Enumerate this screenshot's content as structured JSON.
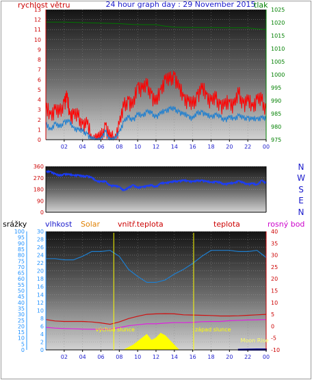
{
  "header": {
    "left_label": "rychlost větru",
    "title": "24 hour graph day : 29 November 2015",
    "right_label": "tlak"
  },
  "colors": {
    "wind": "#ff1a1a",
    "gust": "#ff0000",
    "wind_avg": "#1e7fd0",
    "pressure": "#007700",
    "direction": "#1a3cff",
    "humidity": "#1e7fd0",
    "temperature": "#d01010",
    "dewpoint": "#e020e0",
    "indoor_temp": "#ff6600",
    "solar": "#ffff00",
    "rain": "#000099",
    "rain_axis": "#1e90ff",
    "sun_event": "#ffff00",
    "moon_rise": "#ffff66",
    "axis_label_red": "#cc0000",
    "axis_label_blue": "#1a1acc",
    "axis_label_green": "#008000",
    "axis_label_magenta": "#cc00cc",
    "axis_label_orange": "#e08000"
  },
  "chart_data": [
    {
      "id": "wind_pressure",
      "type": "line",
      "x_ticks": [
        "02",
        "04",
        "06",
        "08",
        "10",
        "12",
        "14",
        "16",
        "18",
        "20",
        "22",
        "00"
      ],
      "left_axis": {
        "label": "rychlost větru",
        "ticks": [
          0,
          1,
          2,
          3,
          4,
          5,
          6,
          7,
          8,
          9,
          10,
          11,
          12,
          13
        ],
        "ylim": [
          0,
          13
        ]
      },
      "right_axis": {
        "label": "tlak",
        "ticks": [
          975,
          980,
          985,
          990,
          995,
          1000,
          1005,
          1010,
          1015,
          1020,
          1025
        ],
        "ylim": [
          975,
          1025
        ]
      },
      "series": [
        {
          "key": "gust",
          "axis": "left",
          "x": [
            0,
            0.5,
            1,
            1.5,
            2,
            2.3,
            2.6,
            3,
            3.5,
            4,
            4.5,
            5,
            5.5,
            6,
            6.5,
            7,
            7.5,
            8,
            8.5,
            9,
            9.5,
            10,
            10.5,
            11,
            11.5,
            12,
            12.5,
            13,
            13.5,
            14,
            14.5,
            15,
            15.5,
            16,
            16.5,
            17,
            17.5,
            18,
            18.5,
            19,
            19.5,
            20,
            20.5,
            21,
            21.5,
            22,
            22.5,
            23,
            23.5,
            24
          ],
          "y": [
            3,
            2.5,
            3,
            2.5,
            3.8,
            4.2,
            2.5,
            2.5,
            2.2,
            1.5,
            1.5,
            0,
            0,
            0,
            1.5,
            0,
            0,
            1.5,
            3.2,
            4,
            3.2,
            5.5,
            5,
            5.3,
            4.6,
            3.5,
            5,
            6,
            5.8,
            6.5,
            5,
            4.3,
            3.8,
            3.3,
            4.5,
            5,
            4.5,
            3.8,
            4,
            3.5,
            3.3,
            3.8,
            3.4,
            4.5,
            3.6,
            3.8,
            3.3,
            4,
            3.8,
            3
          ]
        },
        {
          "key": "wind_avg",
          "axis": "left",
          "x": [
            0,
            0.5,
            1,
            1.5,
            2,
            2.5,
            3,
            3.5,
            4,
            4.5,
            5,
            5.5,
            6,
            6.5,
            7,
            7.5,
            8,
            8.5,
            9,
            9.5,
            10,
            10.5,
            11,
            11.5,
            12,
            12.5,
            13,
            13.5,
            14,
            14.5,
            15,
            15.5,
            16,
            16.5,
            17,
            17.5,
            18,
            18.5,
            19,
            19.5,
            20,
            20.5,
            21,
            21.5,
            22,
            22.5,
            23,
            23.5,
            24
          ],
          "y": [
            1.5,
            1,
            1.6,
            1.2,
            1.8,
            1.8,
            1.2,
            1,
            0.8,
            0.6,
            0,
            0,
            0,
            0.8,
            0,
            0,
            0.8,
            1.8,
            2.2,
            2,
            2.5,
            2.4,
            2.8,
            2.6,
            2.3,
            2.6,
            2.9,
            3.1,
            3,
            2.8,
            2.5,
            2.4,
            2.1,
            2.6,
            2.8,
            2.4,
            2.3,
            2.5,
            2.2,
            2,
            2.2,
            2.1,
            2.4,
            2.1,
            2.2,
            2,
            2.1,
            2.2,
            2
          ]
        },
        {
          "key": "pressure",
          "axis": "right",
          "x": [
            0,
            2,
            4,
            6,
            8,
            9.5,
            10.5,
            12,
            13,
            14,
            16,
            18,
            20,
            22,
            23,
            24
          ],
          "y": [
            1020.2,
            1020.2,
            1020,
            1019.8,
            1019.6,
            1019.3,
            1019.2,
            1019.2,
            1018.6,
            1018.2,
            1018.1,
            1018.1,
            1018,
            1018,
            1017.6,
            1017.3
          ]
        }
      ]
    },
    {
      "id": "wind_direction",
      "type": "line",
      "x_ticks": [
        "02",
        "04",
        "06",
        "08",
        "10",
        "12",
        "14",
        "16",
        "18",
        "20",
        "22",
        "00"
      ],
      "left_axis": {
        "ticks": [
          0,
          90,
          180,
          270,
          360
        ],
        "ylim": [
          0,
          360
        ]
      },
      "right_axis": {
        "labels": [
          "N",
          "W",
          "S",
          "E",
          "N"
        ]
      },
      "series": [
        {
          "key": "direction",
          "x": [
            0,
            0.5,
            1,
            1.5,
            2,
            2.5,
            3,
            3.5,
            4,
            4.5,
            5,
            5.5,
            6,
            6.5,
            7,
            7.5,
            8,
            8.5,
            9,
            9.5,
            10,
            10.5,
            11,
            11.5,
            12,
            12.5,
            13,
            13.5,
            14,
            14.5,
            15,
            15.5,
            16,
            16.5,
            17,
            17.5,
            18,
            18.5,
            19,
            19.5,
            20,
            20.5,
            21,
            21.5,
            22,
            22.5,
            23,
            23.5,
            24
          ],
          "y": [
            315,
            320,
            300,
            285,
            300,
            295,
            290,
            290,
            280,
            285,
            270,
            245,
            240,
            240,
            210,
            205,
            200,
            170,
            190,
            215,
            190,
            200,
            205,
            210,
            200,
            225,
            230,
            235,
            240,
            245,
            248,
            245,
            240,
            245,
            250,
            240,
            235,
            240,
            230,
            220,
            225,
            230,
            245,
            230,
            220,
            225,
            215,
            250,
            225
          ]
        }
      ]
    },
    {
      "id": "temp_humidity_rain",
      "type": "line",
      "x_ticks": [
        "02",
        "04",
        "06",
        "08",
        "10",
        "12",
        "14",
        "16",
        "18",
        "20",
        "22",
        "00"
      ],
      "axis_labels": [
        "srážky",
        "vlhkost",
        "Solar",
        "vnitř.teplota",
        "teplota",
        "rosný bod"
      ],
      "rain_axis": {
        "ticks": [
          0,
          5,
          10,
          15,
          20,
          25,
          30,
          35,
          40,
          45,
          50,
          55,
          60,
          65,
          70,
          75,
          80,
          85,
          90,
          95,
          100
        ],
        "ylim": [
          0,
          100
        ]
      },
      "humidity_axis": {
        "ticks": [
          0,
          2,
          4,
          6,
          8,
          10,
          12,
          14,
          16,
          18,
          20,
          22,
          24,
          26,
          28,
          30
        ],
        "ylim": [
          0,
          30
        ]
      },
      "temp_axis": {
        "ticks": [
          -10,
          -5,
          0,
          5,
          10,
          15,
          20,
          25,
          30,
          35,
          40
        ],
        "ylim": [
          -10,
          40
        ]
      },
      "annotations": [
        {
          "text": "východ slunce",
          "hour": 7.4
        },
        {
          "text": "západ slunce",
          "hour": 16.1
        },
        {
          "text": "Moon Rise",
          "hour": 21.5
        }
      ],
      "series": [
        {
          "key": "humidity",
          "axis": "humidity",
          "x": [
            0,
            1,
            2,
            3,
            4,
            5,
            6,
            7,
            8,
            9,
            10,
            11,
            12,
            13,
            14,
            15,
            16,
            17,
            18,
            19,
            20,
            21,
            22,
            23,
            23.5,
            24
          ],
          "y": [
            77,
            77,
            76,
            76,
            79,
            83,
            83,
            84,
            79,
            68,
            62,
            57,
            57,
            59,
            64,
            68,
            73,
            79,
            84,
            84,
            84,
            83,
            83,
            84,
            81,
            78
          ]
        },
        {
          "key": "temperature",
          "axis": "temp",
          "x": [
            0,
            1,
            2,
            3,
            4,
            5,
            6,
            7,
            8,
            9,
            10,
            11,
            12,
            13,
            14,
            15,
            16,
            17,
            18,
            19,
            20,
            21,
            22,
            23,
            24
          ],
          "y": [
            2.8,
            2.2,
            2,
            2,
            2,
            1.8,
            1.4,
            0.8,
            1.8,
            3.2,
            4.2,
            5,
            5.2,
            5.3,
            5.2,
            4.8,
            4.7,
            4.6,
            4.5,
            4.3,
            4.3,
            4.4,
            4.6,
            4.8,
            5
          ]
        },
        {
          "key": "dewpoint",
          "axis": "temp",
          "x": [
            0,
            1,
            2,
            3,
            4,
            5,
            6,
            7,
            8,
            9,
            10,
            11,
            12,
            13,
            14,
            15,
            16,
            17,
            18,
            19,
            20,
            21,
            22,
            23,
            24
          ],
          "y": [
            -0.5,
            -0.8,
            -1,
            -1.1,
            -1.2,
            -1.3,
            -1.3,
            -1.2,
            -0.6,
            0.2,
            0.6,
            1,
            1,
            1.3,
            1.5,
            1.5,
            1.6,
            1.9,
            2,
            2,
            2.3,
            2.5,
            2.6,
            2.7,
            2.8
          ]
        },
        {
          "key": "solar",
          "axis": "rain",
          "type": "area",
          "x": [
            8.5,
            9,
            9.5,
            10,
            10.5,
            11,
            11.5,
            12,
            12.5,
            13,
            13.5,
            14,
            14.5
          ],
          "y": [
            0,
            2,
            4,
            7,
            10,
            13,
            8,
            10,
            14,
            12,
            8,
            4,
            0
          ]
        },
        {
          "key": "rain",
          "axis": "rain",
          "type": "area",
          "x": [
            21,
            22,
            23,
            24
          ],
          "y": [
            0.3,
            0.4,
            0.6,
            0.6
          ]
        }
      ]
    }
  ]
}
